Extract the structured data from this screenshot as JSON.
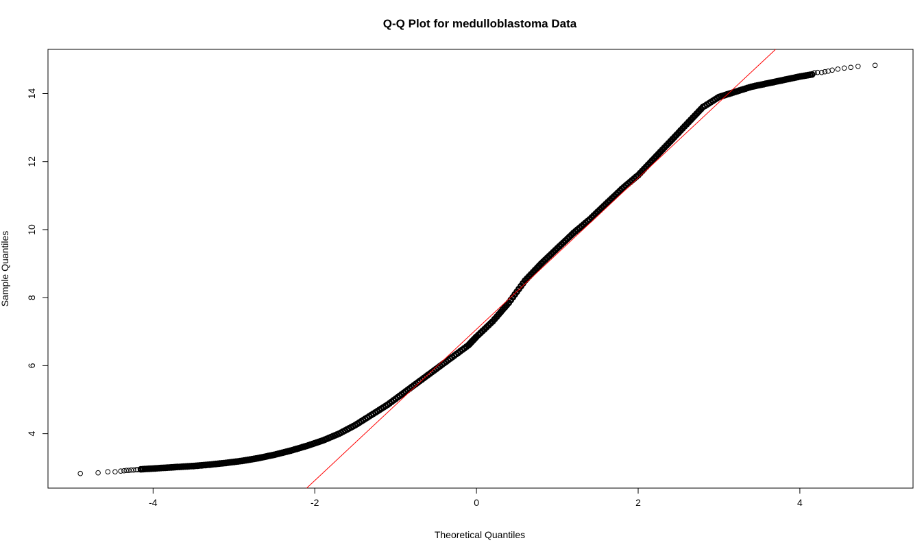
{
  "chart_data": {
    "type": "scatter",
    "title": "Q-Q Plot for medulloblastoma Data",
    "xlabel": "Theoretical Quantiles",
    "ylabel": "Sample Quantiles",
    "xlim": [
      -5.3,
      5.4
    ],
    "ylim": [
      2.4,
      15.3
    ],
    "x_ticks": [
      -4,
      -2,
      0,
      2,
      4
    ],
    "y_ticks": [
      4,
      6,
      8,
      10,
      12,
      14
    ],
    "grid": false,
    "legend": "none",
    "point_color": "#000000",
    "reference_line": {
      "color": "#ff0000",
      "start": [
        -2.1,
        2.4
      ],
      "end": [
        3.7,
        15.3
      ]
    },
    "curve": [
      [
        -4.9,
        2.83
      ],
      [
        -4.7,
        2.86
      ],
      [
        -4.5,
        2.89
      ],
      [
        -4.3,
        2.93
      ],
      [
        -4.1,
        2.96
      ],
      [
        -3.9,
        2.99
      ],
      [
        -3.7,
        3.02
      ],
      [
        -3.5,
        3.05
      ],
      [
        -3.3,
        3.09
      ],
      [
        -3.1,
        3.14
      ],
      [
        -2.9,
        3.2
      ],
      [
        -2.7,
        3.28
      ],
      [
        -2.5,
        3.38
      ],
      [
        -2.3,
        3.5
      ],
      [
        -2.1,
        3.64
      ],
      [
        -1.9,
        3.8
      ],
      [
        -1.7,
        4.0
      ],
      [
        -1.5,
        4.25
      ],
      [
        -1.3,
        4.55
      ],
      [
        -1.1,
        4.85
      ],
      [
        -0.9,
        5.2
      ],
      [
        -0.7,
        5.55
      ],
      [
        -0.5,
        5.9
      ],
      [
        -0.3,
        6.25
      ],
      [
        -0.1,
        6.6
      ],
      [
        0.0,
        6.85
      ],
      [
        0.2,
        7.3
      ],
      [
        0.4,
        7.85
      ],
      [
        0.6,
        8.5
      ],
      [
        0.8,
        9.0
      ],
      [
        1.0,
        9.45
      ],
      [
        1.2,
        9.9
      ],
      [
        1.4,
        10.3
      ],
      [
        1.6,
        10.75
      ],
      [
        1.8,
        11.2
      ],
      [
        2.0,
        11.6
      ],
      [
        2.2,
        12.1
      ],
      [
        2.4,
        12.6
      ],
      [
        2.6,
        13.1
      ],
      [
        2.8,
        13.6
      ],
      [
        3.0,
        13.9
      ],
      [
        3.2,
        14.05
      ],
      [
        3.4,
        14.2
      ],
      [
        3.6,
        14.3
      ],
      [
        3.8,
        14.4
      ],
      [
        4.0,
        14.5
      ],
      [
        4.2,
        14.58
      ],
      [
        4.4,
        14.65
      ]
    ],
    "tail_points": [
      [
        -4.9,
        2.83
      ],
      [
        -4.68,
        2.85
      ],
      [
        -4.56,
        2.88
      ],
      [
        -4.47,
        2.88
      ],
      [
        -4.4,
        2.9
      ],
      [
        -4.36,
        2.91
      ],
      [
        -4.33,
        2.92
      ],
      [
        -4.3,
        2.92
      ],
      [
        -4.27,
        2.93
      ],
      [
        -4.24,
        2.93
      ],
      [
        -4.21,
        2.94
      ],
      [
        -4.19,
        2.94
      ],
      [
        4.18,
        14.61
      ],
      [
        4.22,
        14.62
      ],
      [
        4.27,
        14.62
      ],
      [
        4.31,
        14.64
      ],
      [
        4.35,
        14.66
      ],
      [
        4.4,
        14.69
      ],
      [
        4.47,
        14.72
      ],
      [
        4.55,
        14.75
      ],
      [
        4.63,
        14.77
      ],
      [
        4.72,
        14.8
      ],
      [
        4.93,
        14.83
      ]
    ]
  }
}
